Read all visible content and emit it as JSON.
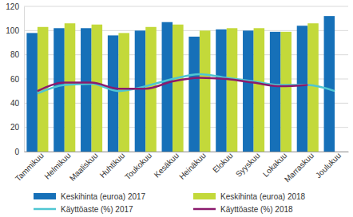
{
  "chart_data": {
    "type": "bar",
    "categories": [
      "Tammikuu",
      "Helmikuu",
      "Maaliskuu",
      "Huhtikuu",
      "Toukokuu",
      "Kesäkuu",
      "Heinäkuu",
      "Elokuu",
      "Syyskuu",
      "Lokakuu",
      "Marraskuu",
      "Joulukuu"
    ],
    "series": [
      {
        "name": "Keskihinta (euroa) 2017",
        "type": "bar",
        "color": "#1670b8",
        "values": [
          98,
          102,
          102,
          96,
          100,
          107,
          95,
          101,
          100,
          99,
          104,
          112
        ]
      },
      {
        "name": "Keskihinta (euroa) 2018",
        "type": "bar",
        "color": "#c3d93a",
        "values": [
          103,
          106,
          105,
          98,
          103,
          105,
          100,
          102,
          102,
          99,
          106,
          null
        ]
      },
      {
        "name": "Käyttöaste (%) 2017",
        "type": "line",
        "color": "#4fc6d2",
        "values": [
          48,
          55,
          56,
          50,
          54,
          60,
          64,
          61,
          58,
          55,
          55,
          50
        ]
      },
      {
        "name": "Käyttöaste (%) 2018",
        "type": "line",
        "color": "#8b1a6c",
        "values": [
          50,
          57,
          57,
          52,
          52,
          58,
          61,
          60,
          57,
          54,
          55,
          null
        ]
      }
    ],
    "ylim": [
      0,
      120
    ],
    "yticks": [
      0,
      20,
      40,
      60,
      80,
      100,
      120
    ],
    "grid": true,
    "legend": "bottom"
  }
}
